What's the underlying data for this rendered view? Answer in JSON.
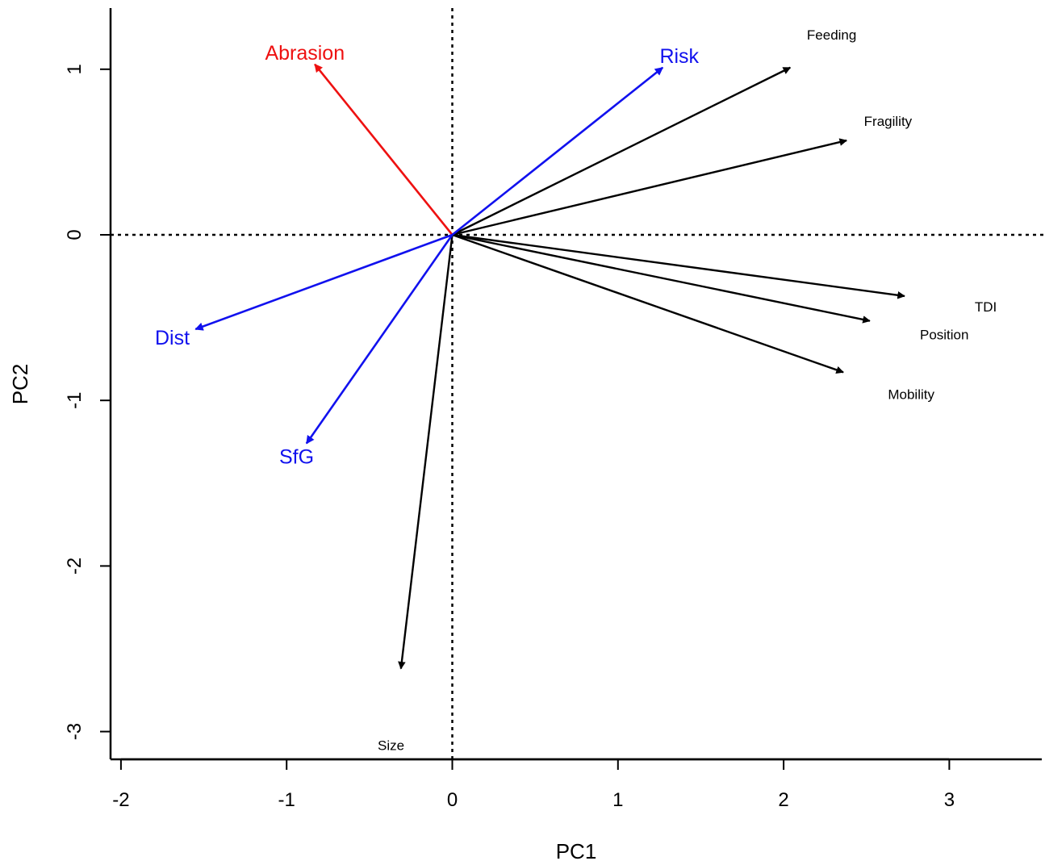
{
  "chart_data": {
    "type": "biplot",
    "xlabel": "PC1",
    "ylabel": "PC2",
    "xlim": [
      -2.05,
      3.55
    ],
    "ylim": [
      -3.17,
      1.37
    ],
    "x_ticks": [
      -2,
      -1,
      0,
      1,
      2,
      3
    ],
    "y_ticks": [
      1,
      0,
      -1,
      -2,
      -3
    ],
    "x_tick_labels": [
      "-2",
      "-1",
      "0",
      "1",
      "2",
      "3"
    ],
    "y_tick_labels": [
      "1",
      "0",
      "-1",
      "-2",
      "-3"
    ],
    "reference_lines": {
      "x": 0,
      "y": 0,
      "style": "dotted"
    },
    "vectors": [
      {
        "name": "Feeding",
        "x": 2.04,
        "y": 1.01,
        "label_x": 2.29,
        "label_y": 1.2,
        "color": "#000000",
        "label_size": "small"
      },
      {
        "name": "Fragility",
        "x": 2.38,
        "y": 0.57,
        "label_x": 2.63,
        "label_y": 0.68,
        "color": "#000000",
        "label_size": "small"
      },
      {
        "name": "TDI",
        "x": 2.73,
        "y": -0.37,
        "label_x": 3.22,
        "label_y": -0.44,
        "color": "#000000",
        "label_size": "small"
      },
      {
        "name": "Position",
        "x": 2.52,
        "y": -0.52,
        "label_x": 2.97,
        "label_y": -0.61,
        "color": "#000000",
        "label_size": "small"
      },
      {
        "name": "Mobility",
        "x": 2.36,
        "y": -0.83,
        "label_x": 2.77,
        "label_y": -0.97,
        "color": "#000000",
        "label_size": "small"
      },
      {
        "name": "Size",
        "x": -0.31,
        "y": -2.62,
        "label_x": -0.37,
        "label_y": -3.09,
        "color": "#000000",
        "label_size": "small"
      },
      {
        "name": "Abrasion",
        "x": -0.83,
        "y": 1.03,
        "label_x": -0.89,
        "label_y": 1.09,
        "color": "#ee1111",
        "label_size": "large"
      },
      {
        "name": "Risk",
        "x": 1.27,
        "y": 1.01,
        "label_x": 1.37,
        "label_y": 1.07,
        "color": "#1111ee",
        "label_size": "large"
      },
      {
        "name": "Dist",
        "x": -1.55,
        "y": -0.57,
        "label_x": -1.69,
        "label_y": -0.63,
        "color": "#1111ee",
        "label_size": "large"
      },
      {
        "name": "SfG",
        "x": -0.88,
        "y": -1.26,
        "label_x": -0.94,
        "label_y": -1.35,
        "color": "#1111ee",
        "label_size": "large"
      }
    ]
  }
}
